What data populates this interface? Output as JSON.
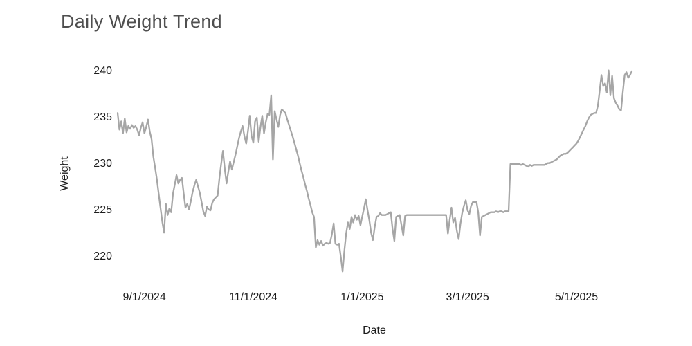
{
  "title": "Daily Weight Trend",
  "colors": {
    "line": "#a6a6a6",
    "title_text": "#4f4f4f",
    "tick_text": "#1c1c1c",
    "background": "#ffffff"
  },
  "chart_data": {
    "type": "line",
    "title": "Daily Weight Trend",
    "xlabel": "Date",
    "ylabel": "Weight",
    "legend": "none",
    "grid": false,
    "axis_lines": false,
    "ylim": [
      217.5,
      241.5
    ],
    "y_ticks": [
      220,
      225,
      230,
      235,
      240
    ],
    "x_ticks": [
      {
        "label": "9/1/2024",
        "day_index": 15
      },
      {
        "label": "11/1/2024",
        "day_index": 76
      },
      {
        "label": "1/1/2025",
        "day_index": 137
      },
      {
        "label": "3/1/2025",
        "day_index": 196
      },
      {
        "label": "5/1/2025",
        "day_index": 257
      }
    ],
    "series": [
      {
        "name": "Weight",
        "x_unit": "day",
        "x_start_approx": "8/17/2024",
        "values": [
          235.5,
          233.7,
          234.6,
          233.3,
          234.9,
          233.4,
          234.1,
          233.8,
          234.2,
          233.9,
          234.1,
          233.7,
          233.1,
          233.9,
          234.5,
          233.3,
          234.0,
          234.8,
          233.5,
          232.7,
          230.8,
          229.6,
          228.3,
          226.8,
          225.3,
          223.8,
          222.6,
          225.7,
          224.5,
          225.2,
          224.8,
          226.8,
          227.8,
          228.8,
          227.9,
          228.3,
          228.5,
          226.8,
          225.3,
          225.7,
          225.1,
          226.0,
          227.0,
          227.7,
          228.3,
          227.6,
          226.9,
          225.9,
          224.9,
          224.4,
          225.4,
          225.1,
          225.0,
          225.8,
          226.2,
          226.4,
          226.6,
          228.5,
          230.0,
          231.4,
          229.5,
          227.9,
          229.2,
          230.3,
          229.4,
          230.2,
          231.0,
          231.9,
          232.8,
          233.5,
          234.1,
          233.0,
          232.2,
          233.5,
          235.2,
          233.0,
          232.3,
          234.6,
          235.0,
          232.4,
          234.0,
          235.2,
          233.3,
          234.5,
          235.4,
          235.3,
          237.4,
          230.5,
          235.7,
          234.8,
          234.0,
          235.3,
          235.9,
          235.7,
          235.5,
          234.8,
          234.2,
          233.6,
          233.0,
          232.3,
          231.6,
          230.9,
          230.1,
          229.3,
          228.6,
          227.8,
          227.1,
          226.3,
          225.6,
          224.8,
          224.3,
          221.0,
          221.8,
          221.3,
          221.7,
          221.2,
          221.4,
          221.5,
          221.4,
          221.5,
          222.4,
          223.6,
          221.4,
          221.3,
          221.4,
          220.0,
          218.4,
          220.6,
          222.5,
          223.7,
          223.0,
          224.3,
          223.7,
          224.5,
          224.0,
          224.4,
          223.4,
          224.3,
          225.2,
          226.2,
          225.0,
          223.9,
          222.6,
          221.8,
          223.2,
          224.3,
          224.4,
          224.7,
          224.5,
          224.5,
          224.5,
          224.6,
          224.7,
          224.8,
          223.0,
          221.7,
          224.3,
          224.4,
          224.5,
          223.4,
          222.3,
          224.4,
          224.5,
          224.5,
          224.5,
          224.5,
          224.5,
          224.5,
          224.5,
          224.5,
          224.5,
          224.5,
          224.5,
          224.5,
          224.5,
          224.5,
          224.5,
          224.5,
          224.5,
          224.5,
          224.5,
          224.5,
          224.5,
          224.5,
          224.5,
          222.5,
          224.0,
          225.3,
          223.7,
          224.2,
          222.8,
          221.9,
          223.5,
          224.7,
          225.5,
          226.1,
          225.0,
          224.6,
          225.5,
          225.9,
          225.9,
          225.9,
          224.8,
          222.3,
          224.3,
          224.4,
          224.5,
          224.6,
          224.7,
          224.8,
          224.8,
          224.8,
          224.9,
          224.8,
          224.9,
          224.9,
          224.8,
          224.9,
          224.9,
          224.9,
          230.0,
          230.0,
          230.0,
          230.0,
          230.0,
          230.0,
          229.9,
          230.0,
          229.9,
          229.8,
          229.7,
          229.9,
          229.8,
          229.9,
          229.9,
          229.9,
          229.9,
          229.9,
          229.9,
          229.9,
          230.0,
          230.1,
          230.1,
          230.2,
          230.3,
          230.4,
          230.5,
          230.7,
          230.9,
          231.0,
          231.1,
          231.1,
          231.2,
          231.4,
          231.6,
          231.8,
          232.0,
          232.2,
          232.5,
          232.9,
          233.3,
          233.7,
          234.1,
          234.6,
          235.0,
          235.3,
          235.4,
          235.5,
          235.5,
          236.3,
          237.9,
          239.6,
          238.4,
          238.7,
          237.7,
          240.1,
          237.4,
          239.5,
          237.1,
          236.6,
          236.3,
          235.9,
          235.8,
          237.8,
          239.6,
          239.9,
          239.3,
          239.6,
          240.0
        ]
      }
    ]
  }
}
